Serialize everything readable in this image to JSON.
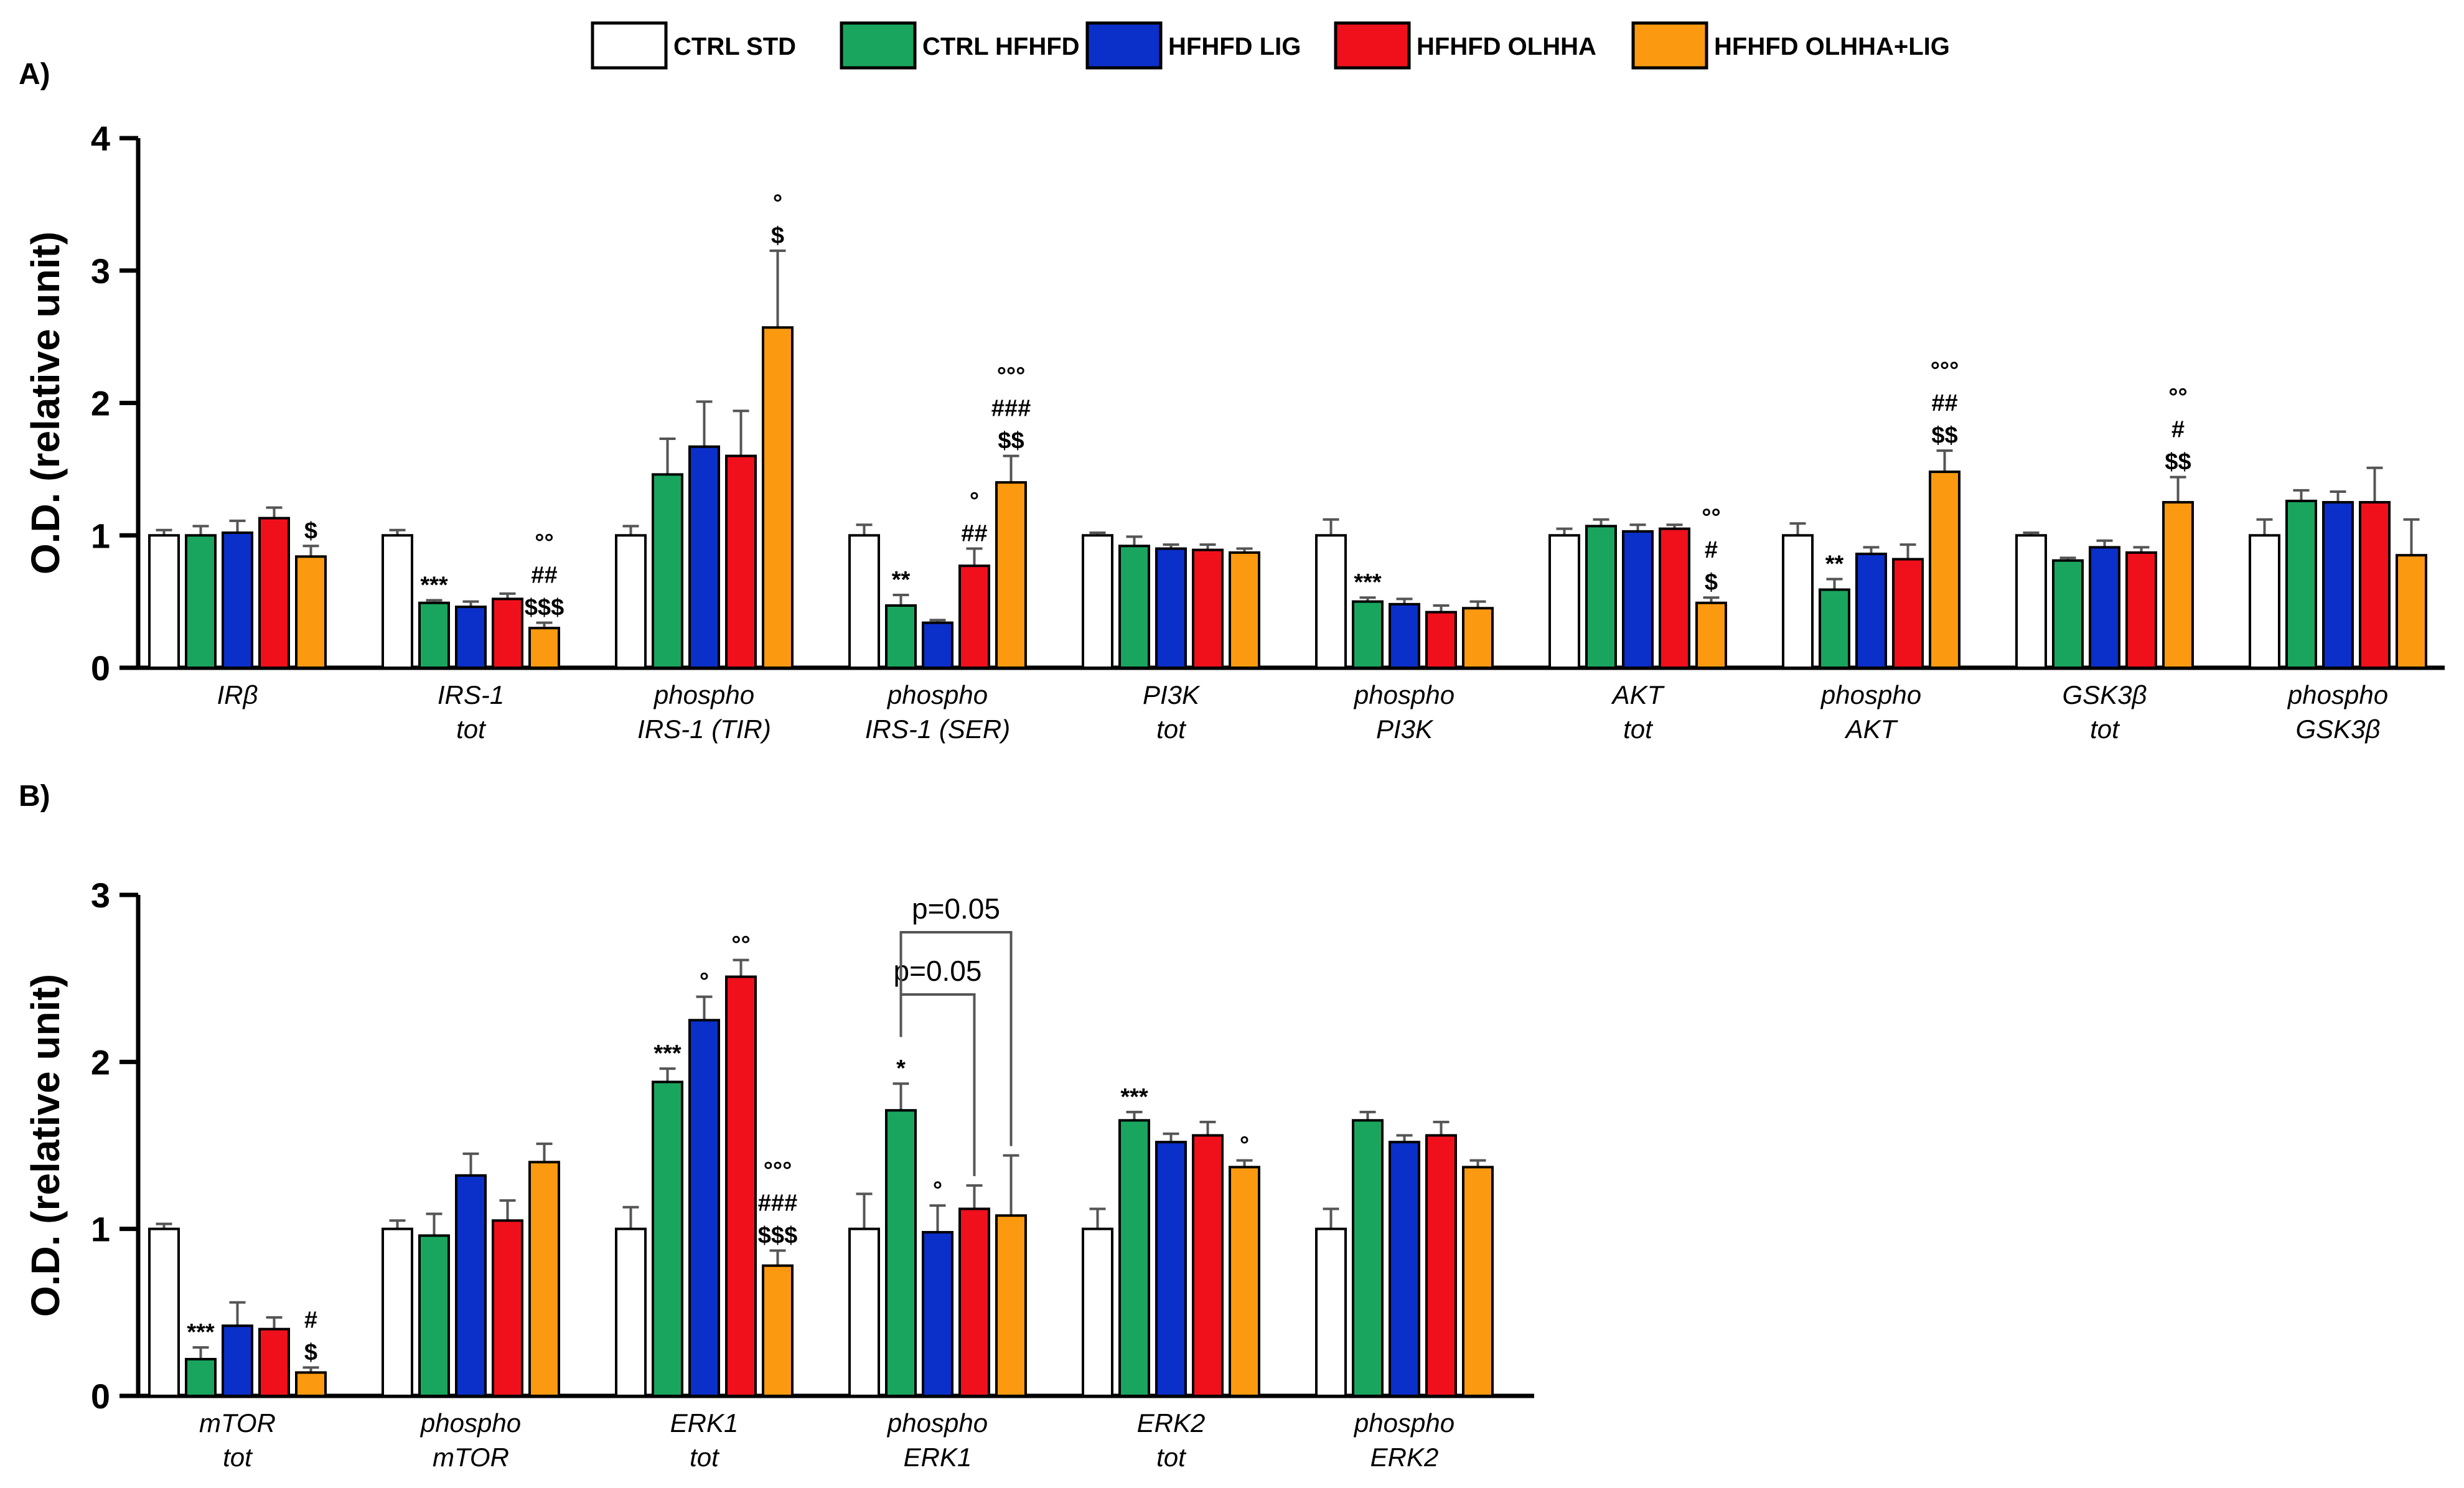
{
  "legend": [
    {
      "label": "CTRL STD",
      "color": "#ffffff"
    },
    {
      "label": "CTRL HFHFD",
      "color": "#1aa55e"
    },
    {
      "label": "HFHFD LIG",
      "color": "#0b2fc9"
    },
    {
      "label": "HFHFD OLHHA",
      "color": "#f0101c"
    },
    {
      "label": "HFHFD OLHHA+LIG",
      "color": "#fb9a10"
    }
  ],
  "chart_data": [
    {
      "type": "bar",
      "panel": "A)",
      "ylabel": "O.D. (relative unit)",
      "ylim": [
        0,
        4
      ],
      "yticks": [
        "0",
        "1",
        "2",
        "3",
        "4"
      ],
      "categories": [
        [
          "IRβ"
        ],
        [
          "IRS-1",
          "tot"
        ],
        [
          "phospho",
          "IRS-1 (TIR)"
        ],
        [
          "phospho",
          "IRS-1 (SER)"
        ],
        [
          "PI3K",
          "tot"
        ],
        [
          "phospho",
          "PI3K"
        ],
        [
          "AKT",
          "tot"
        ],
        [
          "phospho",
          "AKT"
        ],
        [
          "GSK3β",
          "tot"
        ],
        [
          "phospho",
          "GSK3β"
        ]
      ],
      "series": [
        {
          "name": "CTRL STD",
          "values": [
            1.0,
            1.0,
            1.0,
            1.0,
            1.0,
            1.0,
            1.0,
            1.0,
            1.0,
            1.0
          ],
          "errors": [
            0.04,
            0.04,
            0.07,
            0.08,
            0.02,
            0.12,
            0.05,
            0.09,
            0.02,
            0.12
          ]
        },
        {
          "name": "CTRL HFHFD",
          "values": [
            1.0,
            0.49,
            1.46,
            0.47,
            0.92,
            0.5,
            1.07,
            0.59,
            0.81,
            1.26
          ],
          "errors": [
            0.07,
            0.02,
            0.27,
            0.08,
            0.07,
            0.03,
            0.05,
            0.08,
            0.02,
            0.08
          ]
        },
        {
          "name": "HFHFD LIG",
          "values": [
            1.02,
            0.46,
            1.67,
            0.34,
            0.9,
            0.48,
            1.03,
            0.86,
            0.91,
            1.25
          ],
          "errors": [
            0.09,
            0.04,
            0.34,
            0.02,
            0.03,
            0.04,
            0.05,
            0.05,
            0.05,
            0.08
          ]
        },
        {
          "name": "HFHFD OLHHA",
          "values": [
            1.13,
            0.52,
            1.6,
            0.77,
            0.89,
            0.42,
            1.05,
            0.82,
            0.87,
            1.25
          ],
          "errors": [
            0.08,
            0.04,
            0.34,
            0.13,
            0.04,
            0.05,
            0.03,
            0.11,
            0.04,
            0.26
          ]
        },
        {
          "name": "HFHFD OLHHA+LIG",
          "values": [
            0.84,
            0.3,
            2.57,
            1.4,
            0.87,
            0.45,
            0.49,
            1.48,
            1.25,
            0.85
          ],
          "errors": [
            0.08,
            0.04,
            0.58,
            0.2,
            0.03,
            0.05,
            0.04,
            0.16,
            0.19,
            0.27
          ]
        }
      ],
      "annotations": [
        {
          "cat": 0,
          "series": 4,
          "lines": [
            "$"
          ]
        },
        {
          "cat": 1,
          "series": 1,
          "lines": [
            "***"
          ]
        },
        {
          "cat": 1,
          "series": 4,
          "lines": [
            "°°",
            "##",
            "$$$"
          ]
        },
        {
          "cat": 2,
          "series": 4,
          "lines": [
            "°",
            "$"
          ]
        },
        {
          "cat": 3,
          "series": 1,
          "lines": [
            "**"
          ]
        },
        {
          "cat": 3,
          "series": 3,
          "lines": [
            "°",
            "##"
          ]
        },
        {
          "cat": 3,
          "series": 4,
          "lines": [
            "°°°",
            "###",
            "$$"
          ]
        },
        {
          "cat": 5,
          "series": 1,
          "lines": [
            "***"
          ]
        },
        {
          "cat": 6,
          "series": 4,
          "lines": [
            "°°",
            "#",
            "$"
          ]
        },
        {
          "cat": 7,
          "series": 1,
          "lines": [
            "**"
          ]
        },
        {
          "cat": 7,
          "series": 4,
          "lines": [
            "°°°",
            "##",
            "$$"
          ]
        },
        {
          "cat": 8,
          "series": 4,
          "lines": [
            "°°",
            "#",
            "$$"
          ]
        }
      ]
    },
    {
      "type": "bar",
      "panel": "B)",
      "ylabel": "O.D. (relative unit)",
      "ylim": [
        0,
        3
      ],
      "yticks": [
        "0",
        "1",
        "2",
        "3"
      ],
      "categories": [
        [
          "mTOR",
          "tot"
        ],
        [
          "phospho",
          "mTOR"
        ],
        [
          "ERK1",
          "tot"
        ],
        [
          "phospho",
          "ERK1"
        ],
        [
          "ERK2",
          "tot"
        ],
        [
          "phospho",
          "ERK2"
        ]
      ],
      "series": [
        {
          "name": "CTRL STD",
          "values": [
            1.0,
            1.0,
            1.0,
            1.0,
            1.0,
            1.0
          ],
          "errors": [
            0.03,
            0.05,
            0.13,
            0.21,
            0.12,
            0.12
          ]
        },
        {
          "name": "CTRL HFHFD",
          "values": [
            0.22,
            0.96,
            1.88,
            1.71,
            1.65,
            1.65
          ],
          "errors": [
            0.07,
            0.13,
            0.08,
            0.16,
            0.05,
            0.05
          ]
        },
        {
          "name": "HFHFD LIG",
          "values": [
            0.42,
            1.32,
            2.25,
            0.98,
            1.52,
            1.52
          ],
          "errors": [
            0.14,
            0.13,
            0.14,
            0.16,
            0.05,
            0.04
          ]
        },
        {
          "name": "HFHFD OLHHA",
          "values": [
            0.4,
            1.05,
            2.51,
            1.12,
            1.56,
            1.56
          ],
          "errors": [
            0.07,
            0.12,
            0.1,
            0.14,
            0.08,
            0.08
          ]
        },
        {
          "name": "HFHFD OLHHA+LIG",
          "values": [
            0.14,
            1.4,
            0.78,
            1.08,
            1.37,
            1.37
          ],
          "errors": [
            0.03,
            0.11,
            0.09,
            0.36,
            0.04,
            0.04
          ]
        }
      ],
      "annotations": [
        {
          "cat": 0,
          "series": 1,
          "lines": [
            "***"
          ]
        },
        {
          "cat": 0,
          "series": 4,
          "lines": [
            "#",
            "$"
          ]
        },
        {
          "cat": 2,
          "series": 1,
          "lines": [
            "***"
          ]
        },
        {
          "cat": 2,
          "series": 2,
          "lines": [
            "°"
          ]
        },
        {
          "cat": 2,
          "series": 3,
          "lines": [
            "°°"
          ]
        },
        {
          "cat": 2,
          "series": 4,
          "lines": [
            "°°°",
            "###",
            "$$$"
          ]
        },
        {
          "cat": 3,
          "series": 1,
          "lines": [
            "*"
          ]
        },
        {
          "cat": 3,
          "series": 2,
          "lines": [
            "°"
          ]
        },
        {
          "cat": 4,
          "series": 1,
          "lines": [
            "***"
          ]
        },
        {
          "cat": 4,
          "series": 4,
          "lines": [
            "°"
          ]
        }
      ],
      "comparisons": [
        {
          "cat": 3,
          "from_series": 1,
          "to_series": 3,
          "label": "p=0.05"
        },
        {
          "cat": 3,
          "from_series": 1,
          "to_series": 4,
          "label": "p=0.05"
        }
      ]
    }
  ]
}
